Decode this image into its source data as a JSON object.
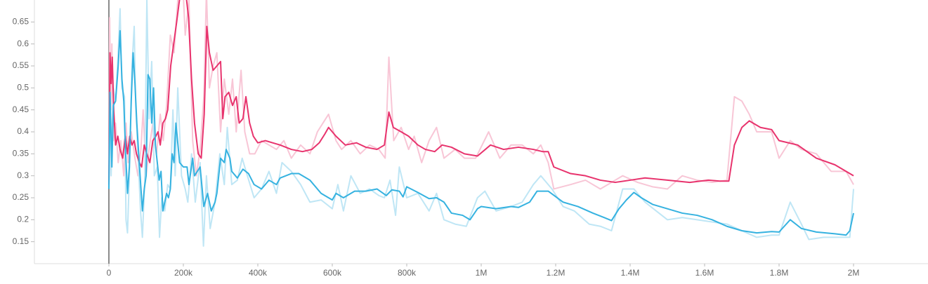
{
  "chart_data": {
    "type": "line",
    "xlim": [
      -200000,
      2200000
    ],
    "ylim": [
      0.1,
      0.7
    ],
    "xticks": [
      {
        "value": 0,
        "label": "0"
      },
      {
        "value": 200000,
        "label": "200k"
      },
      {
        "value": 400000,
        "label": "400k"
      },
      {
        "value": 600000,
        "label": "600k"
      },
      {
        "value": 800000,
        "label": "800k"
      },
      {
        "value": 1000000,
        "label": "1M"
      },
      {
        "value": 1200000,
        "label": "1.2M"
      },
      {
        "value": 1400000,
        "label": "1.4M"
      },
      {
        "value": 1600000,
        "label": "1.6M"
      },
      {
        "value": 1800000,
        "label": "1.8M"
      },
      {
        "value": 2000000,
        "label": "2M"
      }
    ],
    "yticks": [
      0.15,
      0.2,
      0.25,
      0.3,
      0.35,
      0.4,
      0.45,
      0.5,
      0.55,
      0.6,
      0.65
    ],
    "series": [
      {
        "color": "#f8c6d6",
        "x": [
          0,
          2000,
          5000,
          8000,
          12000,
          18000,
          25000,
          32000,
          40000,
          46000,
          52000,
          60000,
          70000,
          78000,
          86000,
          92000,
          100000,
          108000,
          118000,
          128000,
          138000,
          146000,
          155000,
          165000,
          175000,
          185000,
          195000,
          205000,
          215000,
          225000,
          235000,
          245000,
          255000,
          262000,
          270000,
          280000,
          290000,
          300000,
          310000,
          322000,
          332000,
          342000,
          355000,
          365000,
          378000,
          392000,
          410000,
          430000,
          450000,
          470000,
          490000,
          515000,
          540000,
          560000,
          575000,
          590000,
          610000,
          625000,
          650000,
          675000,
          700000,
          725000,
          742000,
          752000,
          765000,
          785000,
          805000,
          820000,
          840000,
          860000,
          880000,
          900000,
          930000,
          955000,
          985000,
          1020000,
          1050000,
          1080000,
          1110000,
          1140000,
          1160000,
          1180000,
          1195000,
          1240000,
          1280000,
          1320000,
          1380000,
          1420000,
          1460000,
          1500000,
          1540000,
          1580000,
          1620000,
          1660000,
          1680000,
          1700000,
          1720000,
          1740000,
          1780000,
          1800000,
          1830000,
          1860000,
          1900000,
          1940000,
          1980000,
          2000000
        ],
        "values": [
          0.3,
          0.66,
          0.45,
          0.6,
          0.38,
          0.42,
          0.33,
          0.38,
          0.3,
          0.42,
          0.33,
          0.4,
          0.34,
          0.3,
          0.36,
          0.45,
          0.3,
          0.36,
          0.42,
          0.35,
          0.44,
          0.38,
          0.46,
          0.62,
          0.58,
          0.7,
          0.8,
          0.62,
          0.7,
          0.38,
          0.3,
          0.36,
          0.48,
          0.72,
          0.5,
          0.55,
          0.58,
          0.4,
          0.52,
          0.44,
          0.52,
          0.4,
          0.54,
          0.4,
          0.35,
          0.35,
          0.38,
          0.37,
          0.36,
          0.38,
          0.34,
          0.37,
          0.35,
          0.4,
          0.42,
          0.44,
          0.38,
          0.36,
          0.38,
          0.35,
          0.37,
          0.36,
          0.34,
          0.57,
          0.38,
          0.41,
          0.36,
          0.39,
          0.33,
          0.38,
          0.41,
          0.34,
          0.36,
          0.34,
          0.34,
          0.4,
          0.34,
          0.37,
          0.37,
          0.35,
          0.37,
          0.33,
          0.27,
          0.28,
          0.29,
          0.27,
          0.3,
          0.285,
          0.275,
          0.27,
          0.3,
          0.29,
          0.285,
          0.29,
          0.48,
          0.47,
          0.44,
          0.4,
          0.4,
          0.34,
          0.38,
          0.36,
          0.35,
          0.31,
          0.31,
          0.28
        ]
      },
      {
        "color": "#bfe6f5",
        "x": [
          0,
          2000,
          6000,
          12000,
          18000,
          25000,
          30000,
          35000,
          42000,
          46000,
          50000,
          55000,
          62000,
          68000,
          72000,
          78000,
          85000,
          90000,
          96000,
          102000,
          108000,
          115000,
          122000,
          130000,
          136000,
          142000,
          150000,
          158000,
          165000,
          172000,
          178000,
          185000,
          195000,
          205000,
          212000,
          222000,
          232000,
          245000,
          254000,
          262000,
          272000,
          285000,
          298000,
          310000,
          318000,
          330000,
          345000,
          358000,
          372000,
          390000,
          410000,
          430000,
          450000,
          465000,
          490000,
          515000,
          540000,
          570000,
          600000,
          615000,
          630000,
          650000,
          675000,
          700000,
          725000,
          740000,
          755000,
          770000,
          780000,
          800000,
          830000,
          860000,
          880000,
          900000,
          930000,
          960000,
          990000,
          1010000,
          1040000,
          1080000,
          1110000,
          1140000,
          1160000,
          1190000,
          1220000,
          1250000,
          1290000,
          1320000,
          1350000,
          1380000,
          1410000,
          1440000,
          1470000,
          1500000,
          1540000,
          1580000,
          1620000,
          1660000,
          1700000,
          1740000,
          1780000,
          1800000,
          1830000,
          1860000,
          1880000,
          1920000,
          1960000,
          1990000,
          2000000
        ],
        "values": [
          0.3,
          0.5,
          0.3,
          0.5,
          0.47,
          0.58,
          0.68,
          0.5,
          0.48,
          0.2,
          0.17,
          0.3,
          0.55,
          0.64,
          0.46,
          0.35,
          0.22,
          0.16,
          0.28,
          0.7,
          0.43,
          0.56,
          0.3,
          0.32,
          0.16,
          0.25,
          0.22,
          0.28,
          0.27,
          0.45,
          0.3,
          0.5,
          0.3,
          0.27,
          0.24,
          0.35,
          0.24,
          0.33,
          0.14,
          0.3,
          0.18,
          0.24,
          0.35,
          0.28,
          0.41,
          0.28,
          0.29,
          0.34,
          0.3,
          0.25,
          0.27,
          0.31,
          0.26,
          0.33,
          0.31,
          0.28,
          0.24,
          0.245,
          0.225,
          0.28,
          0.22,
          0.3,
          0.26,
          0.27,
          0.255,
          0.25,
          0.29,
          0.21,
          0.32,
          0.25,
          0.26,
          0.22,
          0.26,
          0.2,
          0.19,
          0.185,
          0.25,
          0.265,
          0.22,
          0.23,
          0.24,
          0.28,
          0.3,
          0.27,
          0.23,
          0.22,
          0.19,
          0.185,
          0.175,
          0.27,
          0.27,
          0.24,
          0.22,
          0.2,
          0.205,
          0.2,
          0.195,
          0.19,
          0.175,
          0.16,
          0.165,
          0.165,
          0.24,
          0.19,
          0.155,
          0.16,
          0.16,
          0.16,
          0.27
        ]
      },
      {
        "color": "#e8336d",
        "x": [
          0,
          3000,
          6000,
          9000,
          13000,
          18000,
          24000,
          30000,
          37000,
          44000,
          50000,
          56000,
          62000,
          68000,
          74000,
          82000,
          88000,
          95000,
          102000,
          110000,
          118000,
          126000,
          132000,
          138000,
          145000,
          152000,
          158000,
          166000,
          174000,
          182000,
          188000,
          196000,
          206000,
          214000,
          222000,
          230000,
          240000,
          248000,
          256000,
          263000,
          270000,
          280000,
          290000,
          300000,
          306000,
          312000,
          322000,
          332000,
          342000,
          350000,
          360000,
          368000,
          378000,
          388000,
          400000,
          420000,
          440000,
          460000,
          490000,
          520000,
          545000,
          565000,
          580000,
          590000,
          610000,
          635000,
          665000,
          690000,
          720000,
          740000,
          752000,
          764000,
          785000,
          805000,
          830000,
          850000,
          875000,
          895000,
          920000,
          955000,
          990000,
          1025000,
          1060000,
          1100000,
          1140000,
          1165000,
          1180000,
          1195000,
          1240000,
          1280000,
          1320000,
          1360000,
          1400000,
          1440000,
          1500000,
          1560000,
          1610000,
          1640000,
          1665000,
          1680000,
          1700000,
          1720000,
          1750000,
          1780000,
          1800000,
          1850000,
          1900000,
          1950000,
          2000000
        ],
        "values": [
          0.28,
          0.58,
          0.51,
          0.57,
          0.45,
          0.37,
          0.39,
          0.36,
          0.34,
          0.39,
          0.35,
          0.39,
          0.37,
          0.38,
          0.35,
          0.33,
          0.32,
          0.37,
          0.35,
          0.33,
          0.38,
          0.39,
          0.4,
          0.37,
          0.42,
          0.43,
          0.45,
          0.55,
          0.6,
          0.65,
          0.69,
          0.74,
          0.72,
          0.66,
          0.52,
          0.42,
          0.35,
          0.34,
          0.44,
          0.64,
          0.58,
          0.54,
          0.55,
          0.56,
          0.43,
          0.48,
          0.49,
          0.46,
          0.48,
          0.42,
          0.43,
          0.48,
          0.42,
          0.39,
          0.375,
          0.38,
          0.375,
          0.37,
          0.36,
          0.355,
          0.36,
          0.375,
          0.395,
          0.41,
          0.39,
          0.37,
          0.375,
          0.365,
          0.36,
          0.37,
          0.445,
          0.41,
          0.4,
          0.39,
          0.37,
          0.36,
          0.355,
          0.37,
          0.365,
          0.35,
          0.345,
          0.37,
          0.36,
          0.365,
          0.36,
          0.355,
          0.355,
          0.32,
          0.305,
          0.3,
          0.29,
          0.285,
          0.29,
          0.295,
          0.29,
          0.285,
          0.29,
          0.288,
          0.288,
          0.37,
          0.41,
          0.425,
          0.41,
          0.405,
          0.38,
          0.37,
          0.34,
          0.325,
          0.3
        ]
      },
      {
        "color": "#35b2e0",
        "x": [
          0,
          3000,
          8000,
          12000,
          18000,
          25000,
          30000,
          35000,
          40000,
          45000,
          50000,
          55000,
          60000,
          65000,
          70000,
          75000,
          80000,
          90000,
          95000,
          100000,
          105000,
          110000,
          115000,
          120000,
          125000,
          130000,
          135000,
          140000,
          145000,
          150000,
          155000,
          160000,
          165000,
          170000,
          175000,
          180000,
          190000,
          200000,
          210000,
          215000,
          225000,
          230000,
          245000,
          255000,
          265000,
          275000,
          285000,
          290000,
          300000,
          310000,
          315000,
          325000,
          330000,
          345000,
          360000,
          375000,
          390000,
          410000,
          430000,
          450000,
          460000,
          490000,
          510000,
          540000,
          570000,
          600000,
          610000,
          630000,
          660000,
          690000,
          720000,
          745000,
          760000,
          780000,
          790000,
          800000,
          830000,
          860000,
          880000,
          900000,
          920000,
          950000,
          970000,
          990000,
          1000000,
          1040000,
          1080000,
          1100000,
          1130000,
          1150000,
          1180000,
          1220000,
          1260000,
          1300000,
          1330000,
          1350000,
          1370000,
          1390000,
          1410000,
          1430000,
          1460000,
          1500000,
          1540000,
          1580000,
          1620000,
          1660000,
          1700000,
          1740000,
          1780000,
          1800000,
          1830000,
          1860000,
          1900000,
          1950000,
          1980000,
          1990000,
          2000000
        ],
        "values": [
          0.27,
          0.49,
          0.32,
          0.46,
          0.47,
          0.55,
          0.63,
          0.52,
          0.47,
          0.35,
          0.26,
          0.32,
          0.47,
          0.58,
          0.51,
          0.42,
          0.35,
          0.22,
          0.27,
          0.3,
          0.53,
          0.52,
          0.42,
          0.5,
          0.37,
          0.33,
          0.29,
          0.31,
          0.22,
          0.24,
          0.26,
          0.25,
          0.27,
          0.35,
          0.33,
          0.42,
          0.33,
          0.32,
          0.32,
          0.28,
          0.34,
          0.3,
          0.32,
          0.23,
          0.26,
          0.22,
          0.24,
          0.26,
          0.34,
          0.33,
          0.36,
          0.34,
          0.31,
          0.295,
          0.315,
          0.305,
          0.28,
          0.27,
          0.29,
          0.28,
          0.295,
          0.305,
          0.305,
          0.29,
          0.26,
          0.245,
          0.26,
          0.25,
          0.265,
          0.265,
          0.27,
          0.255,
          0.268,
          0.265,
          0.252,
          0.275,
          0.262,
          0.248,
          0.25,
          0.24,
          0.215,
          0.21,
          0.2,
          0.225,
          0.23,
          0.225,
          0.23,
          0.228,
          0.24,
          0.265,
          0.265,
          0.24,
          0.23,
          0.215,
          0.205,
          0.198,
          0.225,
          0.245,
          0.262,
          0.25,
          0.235,
          0.225,
          0.215,
          0.21,
          0.2,
          0.185,
          0.175,
          0.17,
          0.173,
          0.172,
          0.2,
          0.18,
          0.172,
          0.168,
          0.165,
          0.175,
          0.215
        ]
      }
    ]
  }
}
